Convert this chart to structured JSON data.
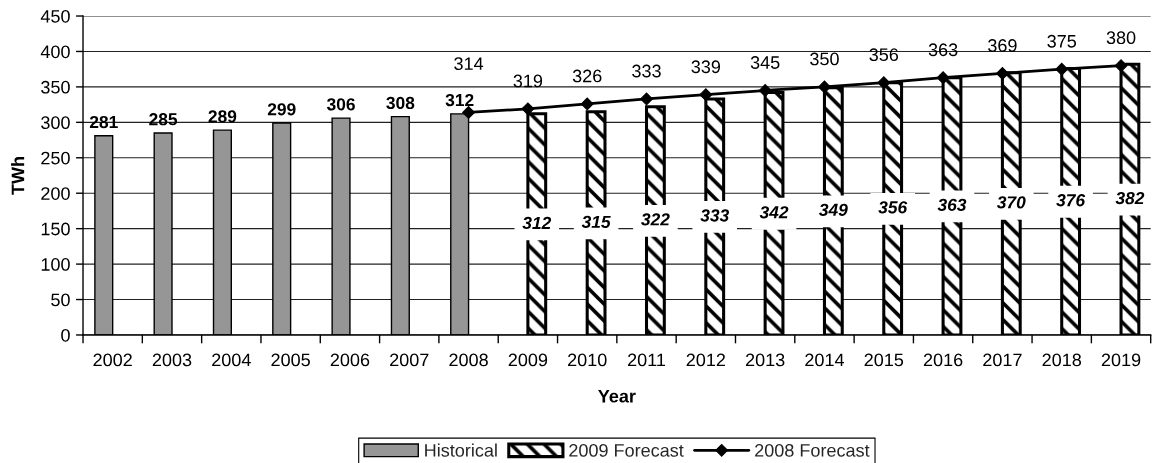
{
  "chart_data": {
    "type": "bar",
    "xlabel": "Year",
    "ylabel": "TWh",
    "categories": [
      "2002",
      "2003",
      "2004",
      "2005",
      "2006",
      "2007",
      "2008",
      "2009",
      "2010",
      "2011",
      "2012",
      "2013",
      "2014",
      "2015",
      "2016",
      "2017",
      "2018",
      "2019"
    ],
    "series": [
      {
        "name": "Historical",
        "color": "#969696",
        "values": [
          281,
          285,
          289,
          299,
          306,
          308,
          312,
          null,
          null,
          null,
          null,
          null,
          null,
          null,
          null,
          null,
          null,
          null
        ]
      },
      {
        "name": "2009 Forecast",
        "color": "#000000",
        "values": [
          null,
          null,
          null,
          null,
          null,
          null,
          null,
          312,
          315,
          322,
          333,
          342,
          349,
          356,
          363,
          370,
          376,
          382
        ]
      },
      {
        "name": "2008 Forecast",
        "type": "line",
        "color": "#000000",
        "values": [
          null,
          null,
          null,
          null,
          null,
          null,
          314,
          319,
          326,
          333,
          339,
          345,
          350,
          356,
          363,
          369,
          375,
          380
        ]
      }
    ],
    "ylim": [
      0,
      450
    ],
    "yticks": [
      0,
      50,
      100,
      150,
      200,
      250,
      300,
      350,
      400,
      450
    ],
    "grid": "y",
    "legend": "bottom",
    "marker": "diamond",
    "data_labels": true
  }
}
